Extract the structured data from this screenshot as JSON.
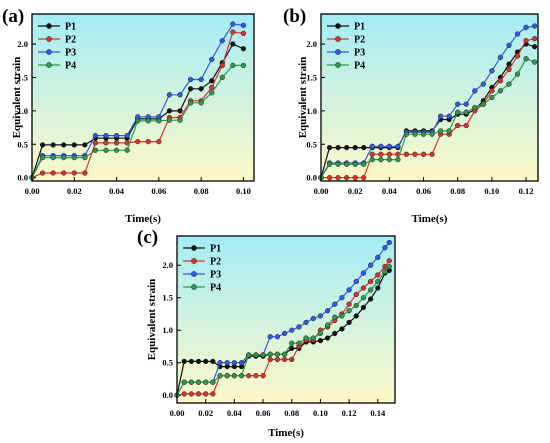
{
  "colors": {
    "P1": "#111111",
    "P2": "#d9342b",
    "P3": "#2f5be8",
    "P4": "#2f9a4d",
    "bg_top": "#a4ecf6",
    "bg_bottom": "#fdf9c8"
  },
  "chart_data": [
    {
      "type": "line",
      "panel": "(a)",
      "xlabel": "Time(s)",
      "ylabel": "Equivalent strain",
      "xlim": [
        0,
        0.105
      ],
      "ylim": [
        -0.05,
        2.45
      ],
      "xticks": [
        0.0,
        0.02,
        0.04,
        0.06,
        0.08,
        0.1
      ],
      "yticks": [
        0.0,
        0.5,
        1.0,
        1.5,
        2.0
      ],
      "legend_position": "top-left",
      "grid": false,
      "series": [
        {
          "name": "P1",
          "x": [
            0.0,
            0.005,
            0.01,
            0.015,
            0.02,
            0.025,
            0.03,
            0.035,
            0.04,
            0.045,
            0.05,
            0.055,
            0.06,
            0.065,
            0.07,
            0.075,
            0.08,
            0.085,
            0.09,
            0.095,
            0.1
          ],
          "y": [
            0.0,
            0.49,
            0.49,
            0.49,
            0.49,
            0.49,
            0.59,
            0.59,
            0.59,
            0.59,
            0.88,
            0.88,
            0.88,
            1.0,
            1.0,
            1.33,
            1.33,
            1.45,
            1.72,
            2.0,
            1.93
          ]
        },
        {
          "name": "P2",
          "x": [
            0.0,
            0.005,
            0.01,
            0.015,
            0.02,
            0.025,
            0.03,
            0.035,
            0.04,
            0.045,
            0.05,
            0.055,
            0.06,
            0.065,
            0.07,
            0.075,
            0.08,
            0.085,
            0.09,
            0.095,
            0.1
          ],
          "y": [
            0.0,
            0.07,
            0.07,
            0.07,
            0.07,
            0.07,
            0.52,
            0.52,
            0.52,
            0.52,
            0.54,
            0.54,
            0.54,
            0.9,
            0.9,
            1.15,
            1.15,
            1.35,
            1.68,
            2.18,
            2.16
          ]
        },
        {
          "name": "P3",
          "x": [
            0.0,
            0.005,
            0.01,
            0.015,
            0.02,
            0.025,
            0.03,
            0.035,
            0.04,
            0.045,
            0.05,
            0.055,
            0.06,
            0.065,
            0.07,
            0.075,
            0.08,
            0.085,
            0.09,
            0.095,
            0.1
          ],
          "y": [
            0.0,
            0.33,
            0.33,
            0.33,
            0.33,
            0.33,
            0.63,
            0.63,
            0.63,
            0.63,
            0.91,
            0.91,
            0.91,
            1.24,
            1.24,
            1.47,
            1.47,
            1.77,
            2.05,
            2.3,
            2.28
          ]
        },
        {
          "name": "P4",
          "x": [
            0.0,
            0.005,
            0.01,
            0.015,
            0.02,
            0.025,
            0.03,
            0.035,
            0.04,
            0.045,
            0.05,
            0.055,
            0.06,
            0.065,
            0.07,
            0.075,
            0.08,
            0.085,
            0.09,
            0.095,
            0.1
          ],
          "y": [
            0.0,
            0.3,
            0.3,
            0.3,
            0.3,
            0.3,
            0.41,
            0.41,
            0.41,
            0.41,
            0.85,
            0.85,
            0.85,
            0.86,
            0.86,
            1.12,
            1.12,
            1.27,
            1.5,
            1.68,
            1.68
          ]
        }
      ]
    },
    {
      "type": "line",
      "panel": "(b)",
      "xlabel": "Time(s)",
      "ylabel": "Equivalent strain",
      "xlim": [
        0,
        0.127
      ],
      "ylim": [
        -0.05,
        2.45
      ],
      "xticks": [
        0.0,
        0.02,
        0.04,
        0.06,
        0.08,
        0.1,
        0.12
      ],
      "yticks": [
        0.0,
        0.5,
        1.0,
        1.5,
        2.0
      ],
      "legend_position": "top-left",
      "grid": false,
      "series": [
        {
          "name": "P1",
          "x": [
            0.0,
            0.005,
            0.01,
            0.015,
            0.02,
            0.025,
            0.03,
            0.035,
            0.04,
            0.045,
            0.05,
            0.055,
            0.06,
            0.065,
            0.07,
            0.075,
            0.08,
            0.085,
            0.09,
            0.095,
            0.1,
            0.105,
            0.11,
            0.115,
            0.12,
            0.125
          ],
          "y": [
            0.0,
            0.45,
            0.45,
            0.45,
            0.45,
            0.45,
            0.45,
            0.45,
            0.45,
            0.45,
            0.7,
            0.7,
            0.7,
            0.7,
            0.87,
            0.87,
            0.95,
            0.95,
            1.02,
            1.15,
            1.35,
            1.5,
            1.7,
            1.88,
            2.0,
            1.96
          ]
        },
        {
          "name": "P2",
          "x": [
            0.0,
            0.005,
            0.01,
            0.015,
            0.02,
            0.025,
            0.03,
            0.035,
            0.04,
            0.045,
            0.05,
            0.055,
            0.06,
            0.065,
            0.07,
            0.075,
            0.08,
            0.085,
            0.09,
            0.095,
            0.1,
            0.105,
            0.11,
            0.115,
            0.12,
            0.125
          ],
          "y": [
            0.0,
            0.0,
            0.0,
            0.0,
            0.0,
            0.0,
            0.35,
            0.35,
            0.35,
            0.35,
            0.35,
            0.35,
            0.35,
            0.35,
            0.65,
            0.65,
            0.78,
            0.78,
            1.0,
            1.1,
            1.3,
            1.45,
            1.62,
            1.82,
            2.05,
            2.08
          ]
        },
        {
          "name": "P3",
          "x": [
            0.0,
            0.005,
            0.01,
            0.015,
            0.02,
            0.025,
            0.03,
            0.035,
            0.04,
            0.045,
            0.05,
            0.055,
            0.06,
            0.065,
            0.07,
            0.075,
            0.08,
            0.085,
            0.09,
            0.095,
            0.1,
            0.105,
            0.11,
            0.115,
            0.12,
            0.125
          ],
          "y": [
            0.0,
            0.22,
            0.22,
            0.22,
            0.22,
            0.22,
            0.47,
            0.47,
            0.47,
            0.47,
            0.68,
            0.68,
            0.68,
            0.68,
            0.92,
            0.92,
            1.1,
            1.1,
            1.3,
            1.4,
            1.6,
            1.8,
            1.98,
            2.15,
            2.25,
            2.27
          ]
        },
        {
          "name": "P4",
          "x": [
            0.0,
            0.005,
            0.01,
            0.015,
            0.02,
            0.025,
            0.03,
            0.035,
            0.04,
            0.045,
            0.05,
            0.055,
            0.06,
            0.065,
            0.07,
            0.075,
            0.08,
            0.085,
            0.09,
            0.095,
            0.1,
            0.105,
            0.11,
            0.115,
            0.12,
            0.125
          ],
          "y": [
            0.0,
            0.2,
            0.2,
            0.2,
            0.2,
            0.2,
            0.27,
            0.27,
            0.27,
            0.27,
            0.65,
            0.65,
            0.65,
            0.65,
            0.7,
            0.7,
            0.98,
            0.98,
            1.05,
            1.1,
            1.2,
            1.3,
            1.4,
            1.55,
            1.78,
            1.73
          ]
        }
      ]
    },
    {
      "type": "line",
      "panel": "(c)",
      "xlabel": "Time(s)",
      "ylabel": "Equivalent strain",
      "xlim": [
        0,
        0.152
      ],
      "ylim": [
        -0.12,
        2.45
      ],
      "xticks": [
        0.0,
        0.02,
        0.04,
        0.06,
        0.08,
        0.1,
        0.12,
        0.14
      ],
      "yticks": [
        0.0,
        0.5,
        1.0,
        1.5,
        2.0
      ],
      "legend_position": "top-left",
      "grid": false,
      "series": [
        {
          "name": "P1",
          "x": [
            0.0,
            0.005,
            0.01,
            0.015,
            0.02,
            0.025,
            0.03,
            0.035,
            0.04,
            0.045,
            0.05,
            0.055,
            0.06,
            0.065,
            0.07,
            0.075,
            0.08,
            0.085,
            0.09,
            0.095,
            0.1,
            0.105,
            0.11,
            0.115,
            0.12,
            0.125,
            0.13,
            0.135,
            0.14,
            0.145,
            0.148
          ],
          "y": [
            0.0,
            0.52,
            0.52,
            0.52,
            0.52,
            0.52,
            0.44,
            0.44,
            0.44,
            0.44,
            0.6,
            0.6,
            0.6,
            0.63,
            0.63,
            0.63,
            0.72,
            0.72,
            0.82,
            0.82,
            0.84,
            0.88,
            0.95,
            1.02,
            1.12,
            1.22,
            1.35,
            1.48,
            1.65,
            1.88,
            1.92
          ]
        },
        {
          "name": "P2",
          "x": [
            0.0,
            0.005,
            0.01,
            0.015,
            0.02,
            0.025,
            0.03,
            0.035,
            0.04,
            0.045,
            0.05,
            0.055,
            0.06,
            0.065,
            0.07,
            0.075,
            0.08,
            0.085,
            0.09,
            0.095,
            0.1,
            0.105,
            0.11,
            0.115,
            0.12,
            0.125,
            0.13,
            0.135,
            0.14,
            0.145,
            0.148
          ],
          "y": [
            0.0,
            0.02,
            0.02,
            0.02,
            0.02,
            0.02,
            0.3,
            0.3,
            0.3,
            0.3,
            0.3,
            0.3,
            0.3,
            0.55,
            0.55,
            0.55,
            0.55,
            0.75,
            0.85,
            0.85,
            1.0,
            1.05,
            1.15,
            1.25,
            1.4,
            1.55,
            1.65,
            1.75,
            1.85,
            1.98,
            2.07
          ]
        },
        {
          "name": "P3",
          "x": [
            0.0,
            0.005,
            0.01,
            0.015,
            0.02,
            0.025,
            0.03,
            0.035,
            0.04,
            0.045,
            0.05,
            0.055,
            0.06,
            0.065,
            0.07,
            0.075,
            0.08,
            0.085,
            0.09,
            0.095,
            0.1,
            0.105,
            0.11,
            0.115,
            0.12,
            0.125,
            0.13,
            0.135,
            0.14,
            0.145,
            0.148
          ],
          "y": [
            0.0,
            0.2,
            0.2,
            0.2,
            0.2,
            0.2,
            0.5,
            0.5,
            0.5,
            0.5,
            0.62,
            0.62,
            0.62,
            0.9,
            0.9,
            0.95,
            1.0,
            1.05,
            1.12,
            1.18,
            1.22,
            1.3,
            1.4,
            1.5,
            1.62,
            1.75,
            1.88,
            2.0,
            2.12,
            2.27,
            2.35
          ]
        },
        {
          "name": "P4",
          "x": [
            0.0,
            0.005,
            0.01,
            0.015,
            0.02,
            0.025,
            0.03,
            0.035,
            0.04,
            0.045,
            0.05,
            0.055,
            0.06,
            0.065,
            0.07,
            0.075,
            0.08,
            0.085,
            0.09,
            0.095,
            0.1,
            0.105,
            0.11,
            0.115,
            0.12,
            0.125,
            0.13,
            0.135,
            0.14,
            0.145,
            0.148
          ],
          "y": [
            0.0,
            0.2,
            0.2,
            0.2,
            0.2,
            0.2,
            0.3,
            0.3,
            0.3,
            0.3,
            0.62,
            0.62,
            0.62,
            0.63,
            0.63,
            0.63,
            0.8,
            0.8,
            0.88,
            0.88,
            0.95,
            1.08,
            1.2,
            1.22,
            1.3,
            1.38,
            1.5,
            1.62,
            1.75,
            1.9,
            1.98
          ]
        }
      ]
    }
  ]
}
